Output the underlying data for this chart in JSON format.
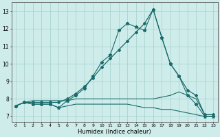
{
  "xlabel": "Humidex (Indice chaleur)",
  "xlim": [
    -0.5,
    23.5
  ],
  "ylim": [
    6.7,
    13.5
  ],
  "xticks": [
    0,
    1,
    2,
    3,
    4,
    5,
    6,
    7,
    8,
    9,
    10,
    11,
    12,
    13,
    14,
    15,
    16,
    17,
    18,
    19,
    20,
    21,
    22,
    23
  ],
  "yticks": [
    7,
    8,
    9,
    10,
    11,
    12,
    13
  ],
  "bg_color": "#ceecea",
  "grid_color": "#aad4d2",
  "line_color": "#1a6b6b",
  "smooth_x": [
    0,
    1,
    2,
    3,
    4,
    5,
    6,
    7,
    8,
    9,
    10,
    11,
    12,
    13,
    14,
    15,
    16,
    17,
    18,
    19,
    20,
    21,
    22,
    23
  ],
  "smooth_y": [
    7.6,
    7.8,
    7.8,
    7.8,
    7.8,
    7.8,
    8.0,
    8.3,
    8.7,
    9.2,
    9.8,
    10.3,
    10.8,
    11.3,
    11.8,
    12.3,
    13.1,
    11.5,
    10.0,
    9.3,
    8.5,
    8.2,
    7.1,
    7.1
  ],
  "spiky_x": [
    0,
    1,
    2,
    3,
    4,
    5,
    6,
    7,
    8,
    9,
    10,
    11,
    12,
    13,
    14,
    15,
    16,
    17,
    18,
    19,
    20,
    21,
    22,
    23
  ],
  "spiky_y": [
    7.6,
    7.8,
    7.7,
    7.7,
    7.7,
    7.5,
    7.9,
    8.2,
    8.6,
    9.3,
    10.1,
    10.5,
    11.9,
    12.3,
    12.1,
    11.9,
    13.1,
    11.5,
    10.0,
    9.3,
    8.2,
    7.7,
    7.0,
    7.0
  ],
  "flat_high_x": [
    0,
    1,
    2,
    3,
    4,
    5,
    6,
    7,
    8,
    9,
    10,
    11,
    12,
    13,
    14,
    15,
    16,
    17,
    18,
    19,
    20,
    21,
    22,
    23
  ],
  "flat_high_y": [
    7.6,
    7.8,
    7.9,
    7.9,
    7.9,
    7.9,
    7.9,
    8.0,
    8.0,
    8.0,
    8.0,
    8.0,
    8.0,
    8.0,
    8.0,
    8.0,
    8.0,
    8.1,
    8.2,
    8.4,
    8.2,
    8.0,
    7.1,
    7.1
  ],
  "flat_low_x": [
    0,
    1,
    2,
    3,
    4,
    5,
    6,
    7,
    8,
    9,
    10,
    11,
    12,
    13,
    14,
    15,
    16,
    17,
    18,
    19,
    20,
    21,
    22,
    23
  ],
  "flat_low_y": [
    7.6,
    7.8,
    7.7,
    7.7,
    7.7,
    7.5,
    7.6,
    7.7,
    7.7,
    7.7,
    7.7,
    7.7,
    7.7,
    7.7,
    7.6,
    7.5,
    7.5,
    7.4,
    7.4,
    7.3,
    7.2,
    7.1,
    7.0,
    7.0
  ]
}
